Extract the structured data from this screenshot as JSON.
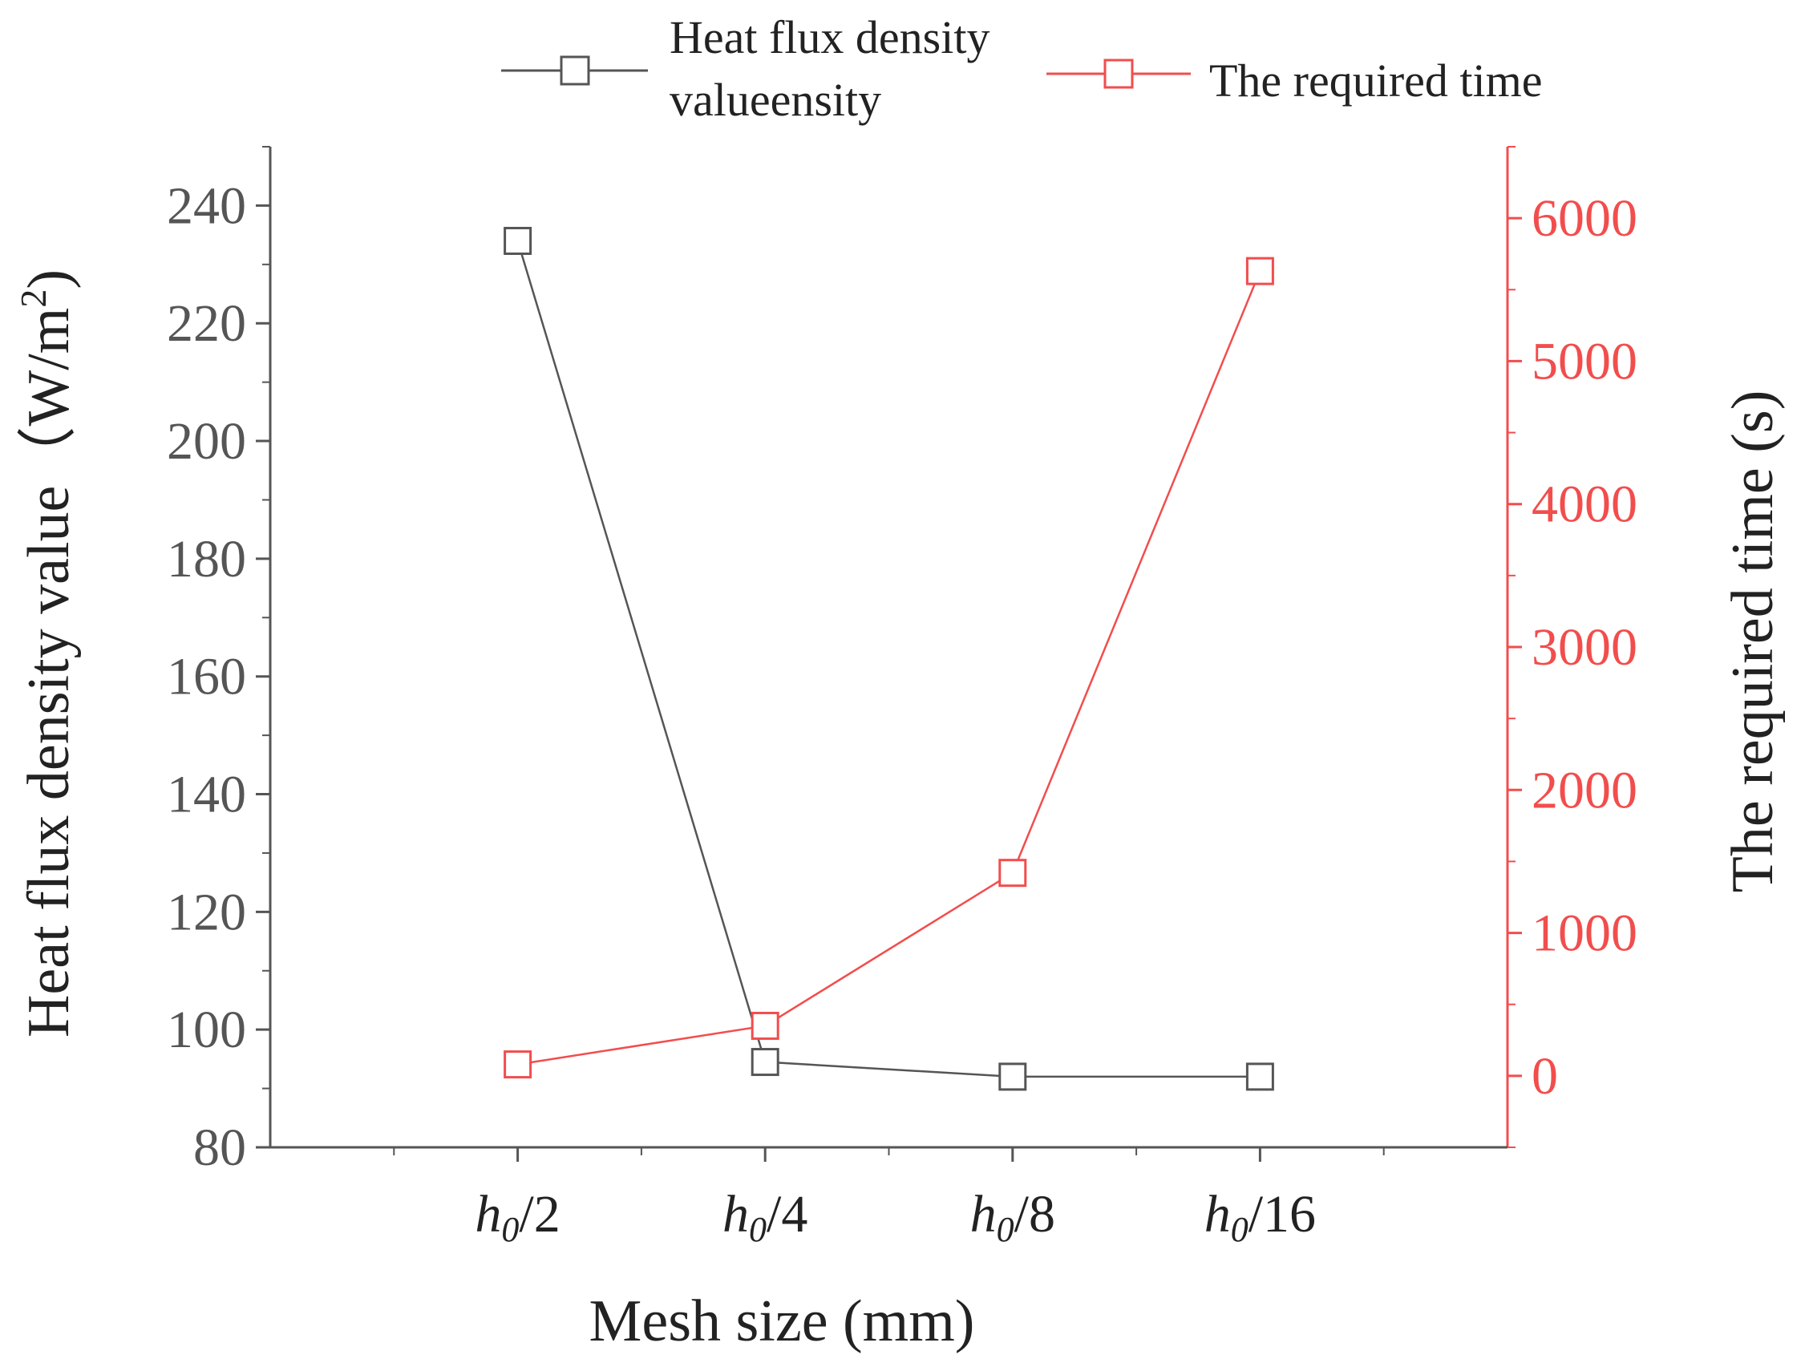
{
  "chart_data": {
    "type": "line",
    "xlabel": "Mesh size (mm)",
    "categories": [
      {
        "prefix": "h",
        "sub": "0",
        "suffix": "/2"
      },
      {
        "prefix": "h",
        "sub": "0",
        "suffix": "/4"
      },
      {
        "prefix": "h",
        "sub": "0",
        "suffix": "/8"
      },
      {
        "prefix": "h",
        "sub": "0",
        "suffix": "/16"
      }
    ],
    "left_axis": {
      "label": "Heat flux density value（W/m",
      "label_sup": "2",
      "label_end": ")",
      "ylim": [
        80,
        250
      ],
      "ticks": [
        80,
        100,
        120,
        140,
        160,
        180,
        200,
        220,
        240
      ],
      "color": "#555555"
    },
    "right_axis": {
      "label": "The required time (s)",
      "ylim": [
        -500,
        6500
      ],
      "ticks": [
        0,
        1000,
        2000,
        3000,
        4000,
        5000,
        6000
      ],
      "color": "#f24d4d"
    },
    "series": [
      {
        "name": "Heat flux density valueensity",
        "legend_line1": "Heat flux density",
        "legend_line2": "valueensity",
        "axis": "left",
        "values": [
          234,
          94.5,
          92,
          92
        ],
        "color": "#555555",
        "marker": "open-square"
      },
      {
        "name": "The required time",
        "axis": "right",
        "values": [
          80,
          350,
          1420,
          5630
        ],
        "color": "#f24d4d",
        "marker": "open-square"
      }
    ],
    "legend_position": "top"
  }
}
